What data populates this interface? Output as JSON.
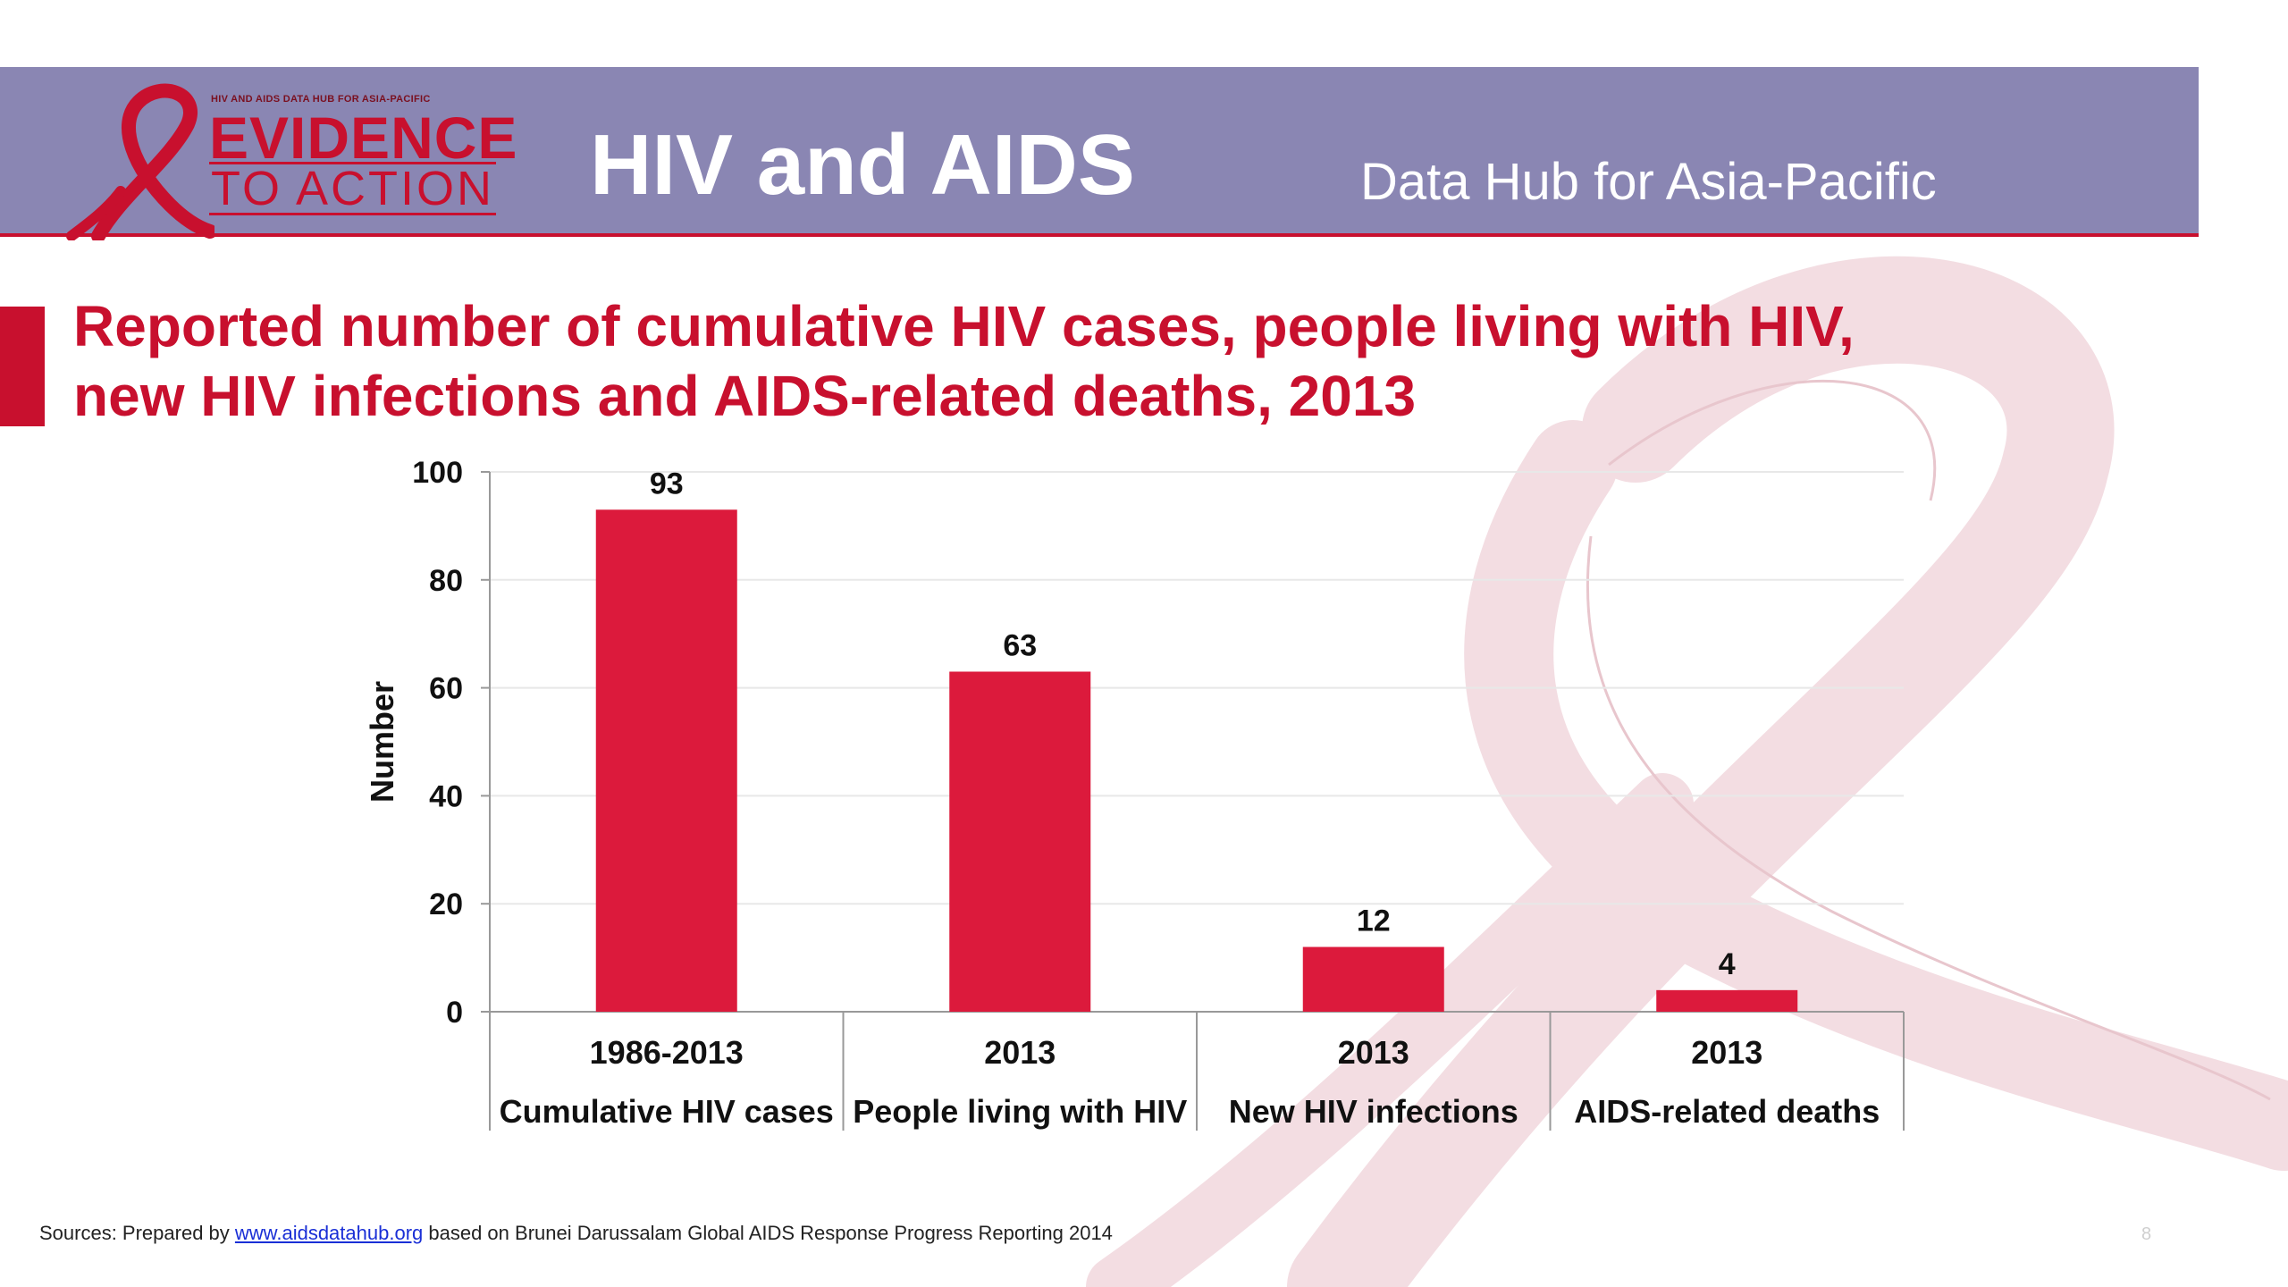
{
  "header": {
    "logo_tagline": "HIV AND AIDS DATA HUB FOR ASIA-PACIFIC",
    "logo_line1": "EVIDENCE",
    "logo_line2": "TO ACTION",
    "title": "HIV and AIDS",
    "subtitle": "Data Hub for Asia-Pacific"
  },
  "slide": {
    "title_line1": "Reported number of cumulative HIV cases, people living with HIV,",
    "title_line2": "new HIV infections and AIDS-related deaths, 2013"
  },
  "chart_data": {
    "type": "bar",
    "categories": [
      {
        "period": "1986-2013",
        "label": "Cumulative HIV cases"
      },
      {
        "period": "2013",
        "label": "People living with HIV"
      },
      {
        "period": "2013",
        "label": "New HIV infections"
      },
      {
        "period": "2013",
        "label": "AIDS-related deaths"
      }
    ],
    "values": [
      93,
      63,
      12,
      4
    ],
    "data_labels": [
      "93",
      "63",
      "12",
      "4"
    ],
    "ylabel": "Number",
    "ylim": [
      0,
      100
    ],
    "yticks": [
      0,
      20,
      40,
      60,
      80,
      100
    ],
    "grid": true,
    "bar_color": "#dc1a3c"
  },
  "footer": {
    "source_prefix": "Sources: Prepared by ",
    "source_link": "www.aidsdatahub.org",
    "source_suffix": " based on Brunei Darussalam Global AIDS Response Progress Reporting 2014",
    "page_number": "8"
  },
  "colors": {
    "banner": "#8a86b3",
    "accent": "#c8102e",
    "bar": "#dc1a3c"
  }
}
